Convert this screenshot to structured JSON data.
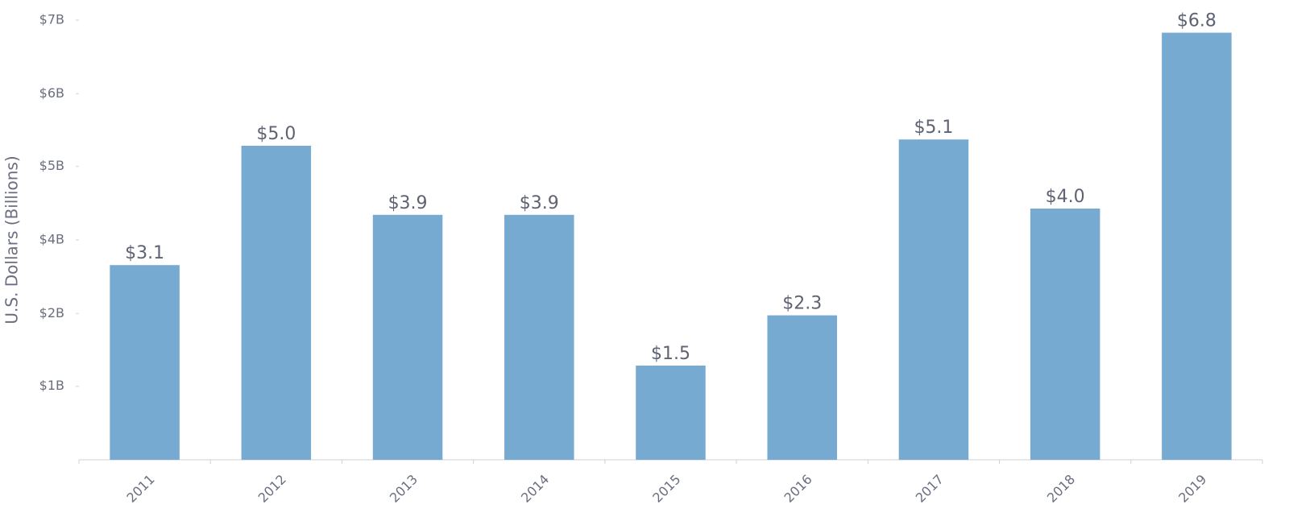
{
  "chart_data": {
    "type": "bar",
    "y_label": "U.S. Dollars (Billions)",
    "categories": [
      "2011",
      "2012",
      "2013",
      "2014",
      "2015",
      "2016",
      "2017",
      "2018",
      "2019"
    ],
    "values": [
      3.1,
      5.0,
      3.9,
      3.9,
      1.5,
      2.3,
      5.1,
      4.0,
      6.8
    ],
    "value_labels": [
      "$3.1",
      "$5.0",
      "$3.9",
      "$3.9",
      "$1.5",
      "$2.3",
      "$5.1",
      "$4.0",
      "$6.8"
    ],
    "color": "#77aad1",
    "ylim": [
      0,
      7
    ],
    "yticks": [
      {
        "value": 1.17,
        "label": "$1B"
      },
      {
        "value": 2.33,
        "label": "$2B"
      },
      {
        "value": 3.5,
        "label": "$4B"
      },
      {
        "value": 4.67,
        "label": "$5B"
      },
      {
        "value": 5.83,
        "label": "$6B"
      },
      {
        "value": 7,
        "label": "$7B"
      }
    ],
    "grid": false
  }
}
